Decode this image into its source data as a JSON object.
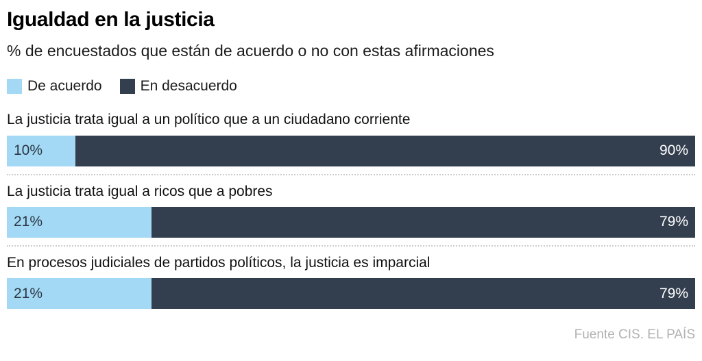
{
  "chart_data": {
    "type": "bar",
    "orientation": "horizontal",
    "stacked": true,
    "title": "Igualdad en la justicia",
    "subtitle": "% de encuestados que están de acuerdo o no con estas afirmaciones",
    "legend": {
      "position": "top",
      "entries": [
        {
          "label": "De acuerdo",
          "color": "#a3d9f5"
        },
        {
          "label": "En desacuerdo",
          "color": "#333e4e"
        }
      ]
    },
    "categories": [
      "La justicia trata igual a un político que a un ciudadano corriente",
      "La justicia trata igual a ricos que a pobres",
      "En procesos judiciales de partidos políticos, la justicia es imparcial"
    ],
    "series": [
      {
        "name": "De acuerdo",
        "values": [
          10,
          21,
          21
        ]
      },
      {
        "name": "En desacuerdo",
        "values": [
          90,
          79,
          79
        ]
      }
    ],
    "xlim": [
      0,
      100
    ],
    "grid": false,
    "source": "Fuente CIS. EL PAÍS"
  },
  "header": {
    "title": "Igualdad en la justicia",
    "subtitle": "% de encuestados que están de acuerdo o no con estas afirmaciones"
  },
  "legend": {
    "agree_label": "De acuerdo",
    "disagree_label": "En desacuerdo"
  },
  "rows": [
    {
      "statement": "La justicia trata igual a un político que a un ciudadano corriente",
      "agree": 10,
      "agree_label": "10%",
      "disagree": 90,
      "disagree_label": "90%"
    },
    {
      "statement": "La justicia trata igual a ricos que a pobres",
      "agree": 21,
      "agree_label": "21%",
      "disagree": 79,
      "disagree_label": "79%"
    },
    {
      "statement": "En procesos judiciales de partidos políticos, la justicia es imparcial",
      "agree": 21,
      "agree_label": "21%",
      "disagree": 79,
      "disagree_label": "79%"
    }
  ],
  "colors": {
    "agree": "#a3d9f5",
    "disagree": "#333e4e",
    "agree_label_text": "#2b3644",
    "disagree_label_text": "#ffffff",
    "text": "#111111",
    "source_text": "#b1b1b1",
    "separator": "#cccccc"
  },
  "footer": {
    "source": "Fuente CIS. EL PAÍS"
  }
}
